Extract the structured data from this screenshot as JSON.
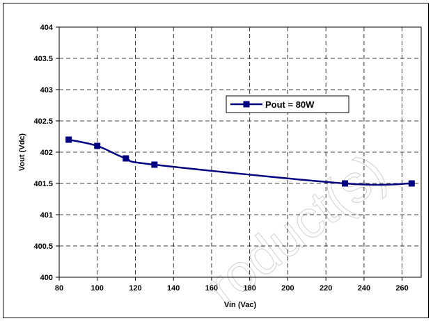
{
  "chart_data": {
    "type": "line",
    "title": "",
    "xlabel": "Vin (Vac)",
    "ylabel": "Vout (Vdc)",
    "xlim": [
      80,
      270
    ],
    "ylim": [
      400,
      404
    ],
    "x_ticks": [
      80,
      100,
      120,
      140,
      160,
      180,
      200,
      220,
      240,
      260
    ],
    "y_ticks": [
      400,
      400.5,
      401,
      401.5,
      402,
      402.5,
      403,
      403.5,
      404
    ],
    "grid": true,
    "legend_position": "top-right",
    "series": [
      {
        "name": "Pout = 80W",
        "color": "#000080",
        "marker": "square",
        "x": [
          85,
          100,
          115,
          130,
          230,
          265
        ],
        "y": [
          402.2,
          402.1,
          401.9,
          401.8,
          401.5,
          401.5
        ]
      }
    ]
  },
  "watermark": "roduct(s)"
}
